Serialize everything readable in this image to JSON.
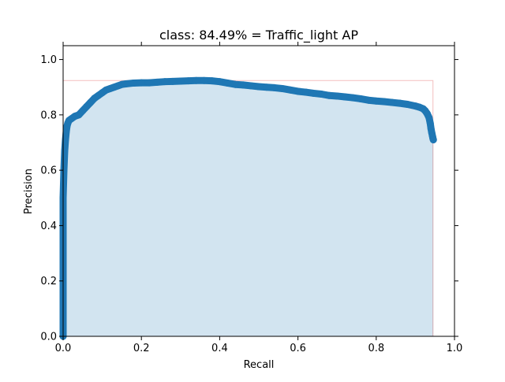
{
  "chart_data": {
    "type": "area",
    "title": "class: 84.49% = Traffic_light AP",
    "xlabel": "Recall",
    "ylabel": "Precision",
    "xlim": [
      0.0,
      1.0
    ],
    "ylim": [
      0.0,
      1.05
    ],
    "xticks": [
      0.0,
      0.2,
      0.4,
      0.6,
      0.8,
      1.0
    ],
    "yticks": [
      0.0,
      0.2,
      0.4,
      0.6,
      0.8,
      1.0
    ],
    "xtick_labels": [
      "0.0",
      "0.2",
      "0.4",
      "0.6",
      "0.8",
      "1.0"
    ],
    "ytick_labels": [
      "0.0",
      "0.2",
      "0.4",
      "0.6",
      "0.8",
      "1.0"
    ],
    "grid": false,
    "series": [
      {
        "kind": "precision-recall points",
        "color": "#1f77b4",
        "x": [
          0.0,
          0.0,
          0.002,
          0.004,
          0.006,
          0.008,
          0.01,
          0.012,
          0.015,
          0.02,
          0.03,
          0.04,
          0.05,
          0.06,
          0.07,
          0.08,
          0.09,
          0.1,
          0.11,
          0.12,
          0.13,
          0.14,
          0.15,
          0.16,
          0.18,
          0.2,
          0.22,
          0.24,
          0.26,
          0.28,
          0.3,
          0.32,
          0.34,
          0.36,
          0.38,
          0.4,
          0.42,
          0.44,
          0.46,
          0.48,
          0.5,
          0.52,
          0.54,
          0.56,
          0.58,
          0.6,
          0.62,
          0.64,
          0.66,
          0.68,
          0.7,
          0.72,
          0.74,
          0.76,
          0.78,
          0.8,
          0.82,
          0.84,
          0.86,
          0.88,
          0.9,
          0.91,
          0.92,
          0.925,
          0.93,
          0.935,
          0.938,
          0.94,
          0.942,
          0.944,
          0.945,
          0.946
        ],
        "y": [
          0.0,
          0.5,
          0.6,
          0.67,
          0.71,
          0.74,
          0.76,
          0.77,
          0.78,
          0.785,
          0.795,
          0.8,
          0.815,
          0.83,
          0.845,
          0.86,
          0.87,
          0.88,
          0.89,
          0.895,
          0.9,
          0.905,
          0.91,
          0.912,
          0.915,
          0.916,
          0.916,
          0.918,
          0.92,
          0.921,
          0.922,
          0.923,
          0.924,
          0.924,
          0.923,
          0.92,
          0.915,
          0.91,
          0.908,
          0.905,
          0.902,
          0.9,
          0.898,
          0.895,
          0.89,
          0.885,
          0.882,
          0.878,
          0.875,
          0.87,
          0.868,
          0.865,
          0.862,
          0.858,
          0.853,
          0.85,
          0.848,
          0.845,
          0.842,
          0.838,
          0.832,
          0.828,
          0.822,
          0.815,
          0.805,
          0.79,
          0.77,
          0.75,
          0.735,
          0.722,
          0.715,
          0.71
        ]
      },
      {
        "kind": "interpolated precision envelope",
        "color": "#d62728",
        "x": [
          0.0,
          0.0,
          0.945,
          0.945
        ],
        "y": [
          0.0,
          0.924,
          0.924,
          0.0
        ]
      }
    ],
    "fill_color": "#1f77b4"
  }
}
